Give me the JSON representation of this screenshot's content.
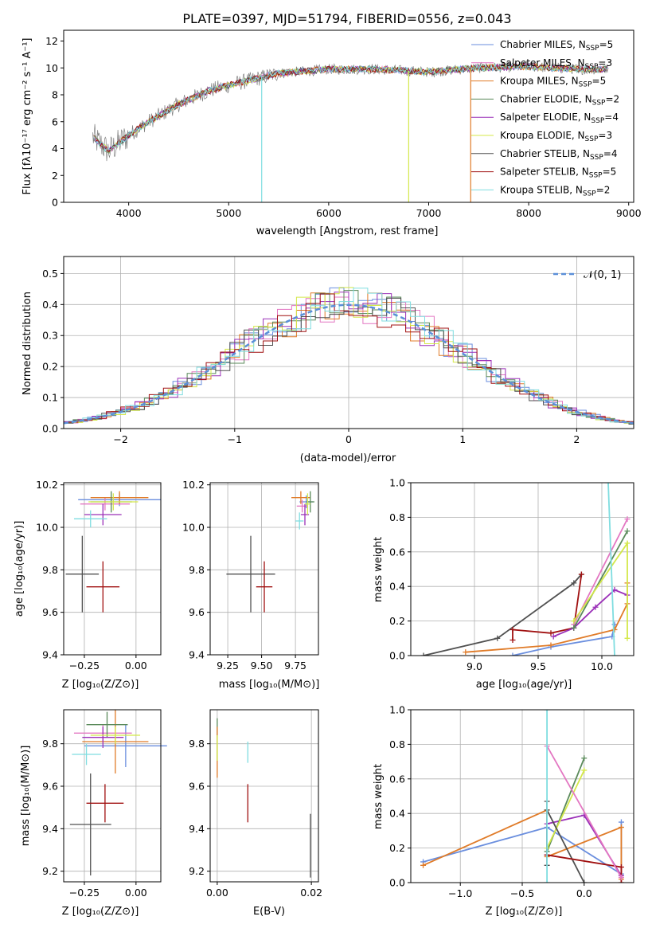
{
  "title": "PLATE=0397, MJD=51794, FIBERID=0556, z=0.043",
  "legend_top": [
    {
      "label": "Chabrier MILES, N",
      "sub": "SSP",
      "suffix": "=5",
      "color": "#6a8ede"
    },
    {
      "label": "Salpeter MILES, N",
      "sub": "SSP",
      "suffix": "=3",
      "color": "#e377c2"
    },
    {
      "label": "Kroupa MILES, N",
      "sub": "SSP",
      "suffix": "=5",
      "color": "#e07b28"
    },
    {
      "label": "Chabrier ELODIE, N",
      "sub": "SSP",
      "suffix": "=2",
      "color": "#5a8a5a"
    },
    {
      "label": "Salpeter ELODIE, N",
      "sub": "SSP",
      "suffix": "=4",
      "color": "#9b30b8"
    },
    {
      "label": "Kroupa ELODIE, N",
      "sub": "SSP",
      "suffix": "=3",
      "color": "#d4e84a"
    },
    {
      "label": "Chabrier STELIB, N",
      "sub": "SSP",
      "suffix": "=4",
      "color": "#505050"
    },
    {
      "label": "Salpeter STELIB, N",
      "sub": "SSP",
      "suffix": "=5",
      "color": "#a01010"
    },
    {
      "label": "Kroupa STELIB, N",
      "sub": "SSP",
      "suffix": "=2",
      "color": "#7fdde0"
    }
  ],
  "legend_hist": {
    "label": "𝒩(0, 1)",
    "color": "#5b8fd8"
  },
  "axes": {
    "spec_xlabel": "wavelength [Angstrom, rest frame]",
    "spec_ylabel": "Flux [fλ10⁻¹⁷ erg cm⁻² s⁻¹ A⁻¹]",
    "hist_xlabel": "(data-model)/error",
    "hist_ylabel": "Normed distribution",
    "p3_ylabel": "age  [log₁₀(age/yr)]",
    "p3_xlabel": "Z [log₁₀(Z/Z⊙)]",
    "p4_xlabel": "mass [log₁₀(M/M⊙)]",
    "p5_ylabel": "mass weight",
    "p5_xlabel": "age  [log₁₀(age/yr)]",
    "p6_ylabel": "mass [log₁₀(M/M⊙)]",
    "p6_xlabel": "Z [log₁₀(Z/Z⊙)]",
    "p7_xlabel": "E(B-V)",
    "p8_ylabel": "mass weight",
    "p8_xlabel": "Z [log₁₀(Z/Z⊙)]"
  },
  "chart_data": [
    {
      "type": "line",
      "title": "PLATE=0397, MJD=51794, FIBERID=0556, z=0.043",
      "xlabel": "wavelength [Angstrom, rest frame]",
      "ylabel": "Flux [fλ10⁻¹⁷ erg cm⁻² s⁻¹ A⁻¹]",
      "xlim": [
        3350,
        9050
      ],
      "ylim": [
        0,
        12.8
      ],
      "xticks": [
        4000,
        5000,
        6000,
        7000,
        8000,
        9000
      ],
      "yticks": [
        0,
        2,
        4,
        6,
        8,
        10,
        12
      ],
      "continuum_x": [
        3650,
        3800,
        4000,
        4200,
        4500,
        4800,
        5000,
        5500,
        6000,
        6500,
        7000,
        7500,
        8000,
        8500,
        8800
      ],
      "continuum_y": [
        4.8,
        3.8,
        5.0,
        6.0,
        7.3,
        8.3,
        8.7,
        9.6,
        9.9,
        9.9,
        9.7,
        10.0,
        10.1,
        9.9,
        9.9
      ],
      "grid": false,
      "legend_placement": "upper right"
    },
    {
      "type": "bar",
      "xlabel": "(data-model)/error",
      "ylabel": "Normed distribution",
      "xlim": [
        -2.5,
        2.5
      ],
      "ylim": [
        0,
        0.555
      ],
      "xticks": [
        -2,
        -1,
        0,
        1,
        2
      ],
      "yticks": [
        0.0,
        0.1,
        0.2,
        0.3,
        0.4,
        0.5
      ],
      "grid": true,
      "legend_placement": "upper right",
      "normal_curve": {
        "mean": 0,
        "sigma": 1
      }
    },
    {
      "type": "scatter",
      "name": "age_vs_Z",
      "xlabel": "Z [log₁₀(Z/Z⊙)]",
      "ylabel": "age  [log₁₀(age/yr)]",
      "xlim": [
        -0.35,
        0.12
      ],
      "ylim": [
        9.4,
        10.21
      ],
      "xticks": [
        -0.25,
        0.0
      ],
      "yticks": [
        9.4,
        9.6,
        9.8,
        10.0,
        10.2
      ],
      "points": [
        {
          "x": -0.08,
          "y": 10.13,
          "xerr": 0.2,
          "yerr": 0.03,
          "color": "#6a8ede"
        },
        {
          "x": -0.15,
          "y": 10.11,
          "xerr": 0.12,
          "yerr": 0.03,
          "color": "#e377c2"
        },
        {
          "x": -0.08,
          "y": 10.14,
          "xerr": 0.14,
          "yerr": 0.03,
          "color": "#e07b28"
        },
        {
          "x": -0.12,
          "y": 10.12,
          "xerr": 0.1,
          "yerr": 0.05,
          "color": "#5a8a5a"
        },
        {
          "x": -0.16,
          "y": 10.06,
          "xerr": 0.09,
          "yerr": 0.05,
          "color": "#9b30b8"
        },
        {
          "x": -0.11,
          "y": 10.12,
          "xerr": 0.12,
          "yerr": 0.04,
          "color": "#d4e84a"
        },
        {
          "x": -0.26,
          "y": 9.78,
          "xerr": 0.08,
          "yerr": 0.18,
          "color": "#505050"
        },
        {
          "x": -0.16,
          "y": 9.72,
          "xerr": 0.08,
          "yerr": 0.12,
          "color": "#a01010"
        },
        {
          "x": -0.22,
          "y": 10.04,
          "xerr": 0.08,
          "yerr": 0.04,
          "color": "#7fdde0"
        }
      ]
    },
    {
      "type": "scatter",
      "name": "age_vs_mass",
      "xlabel": "mass [log₁₀(M/M⊙)]",
      "xlim": [
        9.12,
        9.92
      ],
      "ylim": [
        9.4,
        10.21
      ],
      "xticks": [
        9.25,
        9.5,
        9.75
      ],
      "yticks": [
        9.4,
        9.6,
        9.8,
        10.0,
        10.2
      ],
      "points": [
        {
          "x": 9.83,
          "y": 10.12,
          "xerr": 0.05,
          "yerr": 0.03,
          "color": "#6a8ede"
        },
        {
          "x": 9.8,
          "y": 10.1,
          "xerr": 0.04,
          "yerr": 0.03,
          "color": "#e377c2"
        },
        {
          "x": 9.79,
          "y": 10.14,
          "xerr": 0.07,
          "yerr": 0.03,
          "color": "#e07b28"
        },
        {
          "x": 9.86,
          "y": 10.12,
          "xerr": 0.03,
          "yerr": 0.05,
          "color": "#5a8a5a"
        },
        {
          "x": 9.82,
          "y": 10.06,
          "xerr": 0.03,
          "yerr": 0.05,
          "color": "#9b30b8"
        },
        {
          "x": 9.84,
          "y": 10.11,
          "xerr": 0.02,
          "yerr": 0.05,
          "color": "#d4e84a"
        },
        {
          "x": 9.42,
          "y": 9.78,
          "xerr": 0.18,
          "yerr": 0.18,
          "color": "#505050"
        },
        {
          "x": 9.52,
          "y": 9.72,
          "xerr": 0.06,
          "yerr": 0.12,
          "color": "#a01010"
        },
        {
          "x": 9.78,
          "y": 10.03,
          "xerr": 0.03,
          "yerr": 0.04,
          "color": "#7fdde0"
        }
      ]
    },
    {
      "type": "line",
      "name": "mass_weight_vs_age",
      "xlabel": "age  [log₁₀(age/yr)]",
      "ylabel": "mass weight",
      "xlim": [
        8.5,
        10.25
      ],
      "ylim": [
        0,
        1.0
      ],
      "xticks": [
        9.0,
        9.5,
        10.0
      ],
      "yticks": [
        0.0,
        0.2,
        0.4,
        0.6,
        0.8,
        1.0
      ],
      "grid": true,
      "series": [
        {
          "color": "#505050",
          "x": [
            8.6,
            9.18,
            9.78,
            9.84
          ],
          "y": [
            0.0,
            0.1,
            0.42,
            0.47
          ]
        },
        {
          "color": "#a01010",
          "x": [
            9.3,
            9.3,
            9.6,
            9.78,
            9.84
          ],
          "y": [
            0.09,
            0.15,
            0.13,
            0.16,
            0.47
          ]
        },
        {
          "color": "#6a8ede",
          "x": [
            9.3,
            9.6,
            10.08,
            10.1
          ],
          "y": [
            0.0,
            0.05,
            0.11,
            0.18
          ]
        },
        {
          "color": "#e07b28",
          "x": [
            8.93,
            9.6,
            10.1,
            10.2,
            10.2
          ],
          "y": [
            0.02,
            0.06,
            0.15,
            0.3,
            0.42
          ]
        },
        {
          "color": "#9b30b8",
          "x": [
            9.62,
            9.78,
            9.95,
            10.1,
            10.2
          ],
          "y": [
            0.11,
            0.16,
            0.28,
            0.38,
            0.35
          ]
        },
        {
          "color": "#e377c2",
          "x": [
            9.78,
            10.2
          ],
          "y": [
            0.18,
            0.79
          ]
        },
        {
          "color": "#5a8a5a",
          "x": [
            9.78,
            10.2
          ],
          "y": [
            0.16,
            0.72
          ]
        },
        {
          "color": "#d4e84a",
          "x": [
            9.78,
            10.2,
            10.2
          ],
          "y": [
            0.2,
            0.65,
            0.1
          ]
        },
        {
          "color": "#7fdde0",
          "x": [
            10.05,
            10.1
          ],
          "y": [
            1.0,
            0.0
          ]
        }
      ]
    },
    {
      "type": "scatter",
      "name": "mass_vs_Z",
      "xlabel": "Z [log₁₀(Z/Z⊙)]",
      "ylabel": "mass [log₁₀(M/M⊙)]",
      "xlim": [
        -0.35,
        0.12
      ],
      "ylim": [
        9.15,
        9.96
      ],
      "xticks": [
        -0.25,
        0.0
      ],
      "yticks": [
        9.2,
        9.4,
        9.6,
        9.8
      ],
      "points": [
        {
          "x": -0.05,
          "y": 9.79,
          "xerr": 0.2,
          "yerr": 0.1,
          "color": "#6a8ede"
        },
        {
          "x": -0.16,
          "y": 9.85,
          "xerr": 0.14,
          "yerr": 0.04,
          "color": "#e377c2"
        },
        {
          "x": -0.1,
          "y": 9.81,
          "xerr": 0.16,
          "yerr": 0.15,
          "color": "#e07b28"
        },
        {
          "x": -0.14,
          "y": 9.89,
          "xerr": 0.1,
          "yerr": 0.06,
          "color": "#5a8a5a"
        },
        {
          "x": -0.16,
          "y": 9.83,
          "xerr": 0.1,
          "yerr": 0.05,
          "color": "#9b30b8"
        },
        {
          "x": -0.1,
          "y": 9.84,
          "xerr": 0.12,
          "yerr": 0.04,
          "color": "#d4e84a"
        },
        {
          "x": -0.22,
          "y": 9.42,
          "xerr": 0.1,
          "yerr": 0.24,
          "color": "#505050"
        },
        {
          "x": -0.15,
          "y": 9.52,
          "xerr": 0.09,
          "yerr": 0.09,
          "color": "#a01010"
        },
        {
          "x": -0.24,
          "y": 9.75,
          "xerr": 0.07,
          "yerr": 0.05,
          "color": "#7fdde0"
        }
      ]
    },
    {
      "type": "scatter",
      "name": "mass_vs_EBV",
      "xlabel": "E(B-V)",
      "xlim": [
        -0.0015,
        0.0215
      ],
      "ylim": [
        9.15,
        9.96
      ],
      "xticks": [
        0.0,
        0.02
      ],
      "yticks": [
        9.2,
        9.4,
        9.6,
        9.8
      ],
      "points": [
        {
          "x": 0.0,
          "y": 9.82,
          "yerr": 0.1,
          "color": "#5a8a5a"
        },
        {
          "x": 0.0,
          "y": 9.76,
          "yerr": 0.12,
          "color": "#e07b28"
        },
        {
          "x": 0.0,
          "y": 9.78,
          "yerr": 0.06,
          "color": "#d4e84a"
        },
        {
          "x": 0.0065,
          "y": 9.76,
          "yerr": 0.05,
          "color": "#7fdde0"
        },
        {
          "x": 0.0065,
          "y": 9.52,
          "yerr": 0.09,
          "color": "#a01010"
        },
        {
          "x": 0.0198,
          "y": 9.32,
          "yerr": 0.15,
          "color": "#505050"
        }
      ]
    },
    {
      "type": "line",
      "name": "mass_weight_vs_Z",
      "xlabel": "Z [log₁₀(Z/Z⊙)]",
      "ylabel": "mass weight",
      "xlim": [
        -1.4,
        0.4
      ],
      "ylim": [
        0,
        1.0
      ],
      "xticks": [
        -1.0,
        -0.5,
        0.0
      ],
      "yticks": [
        0.0,
        0.2,
        0.4,
        0.6,
        0.8,
        1.0
      ],
      "grid": true,
      "series": [
        {
          "color": "#6a8ede",
          "x": [
            -1.3,
            -0.3,
            0.3,
            0.3
          ],
          "y": [
            0.12,
            0.32,
            0.05,
            0.35
          ]
        },
        {
          "color": "#e07b28",
          "x": [
            -1.3,
            -0.3,
            -0.3,
            0.3,
            0.3
          ],
          "y": [
            0.1,
            0.42,
            0.15,
            0.32,
            0.02
          ]
        },
        {
          "color": "#9b30b8",
          "x": [
            -0.3,
            -0.3,
            0.0,
            0.3
          ],
          "y": [
            0.16,
            0.34,
            0.39,
            0.04
          ]
        },
        {
          "color": "#5a8a5a",
          "x": [
            -0.3,
            0.0
          ],
          "y": [
            0.18,
            0.72
          ]
        },
        {
          "color": "#d4e84a",
          "x": [
            -0.3,
            0.0
          ],
          "y": [
            0.2,
            0.65
          ]
        },
        {
          "color": "#505050",
          "x": [
            -0.3,
            -0.3,
            -0.3,
            0.0
          ],
          "y": [
            0.1,
            0.47,
            0.42,
            0.0
          ]
        },
        {
          "color": "#a01010",
          "x": [
            -0.3,
            0.3,
            0.3
          ],
          "y": [
            0.16,
            0.09,
            0.0
          ]
        },
        {
          "color": "#e377c2",
          "x": [
            -0.3,
            0.3
          ],
          "y": [
            0.79,
            0.03
          ]
        },
        {
          "color": "#7fdde0",
          "x": [
            -0.3,
            -0.3
          ],
          "y": [
            1.0,
            0.0
          ]
        }
      ]
    }
  ]
}
